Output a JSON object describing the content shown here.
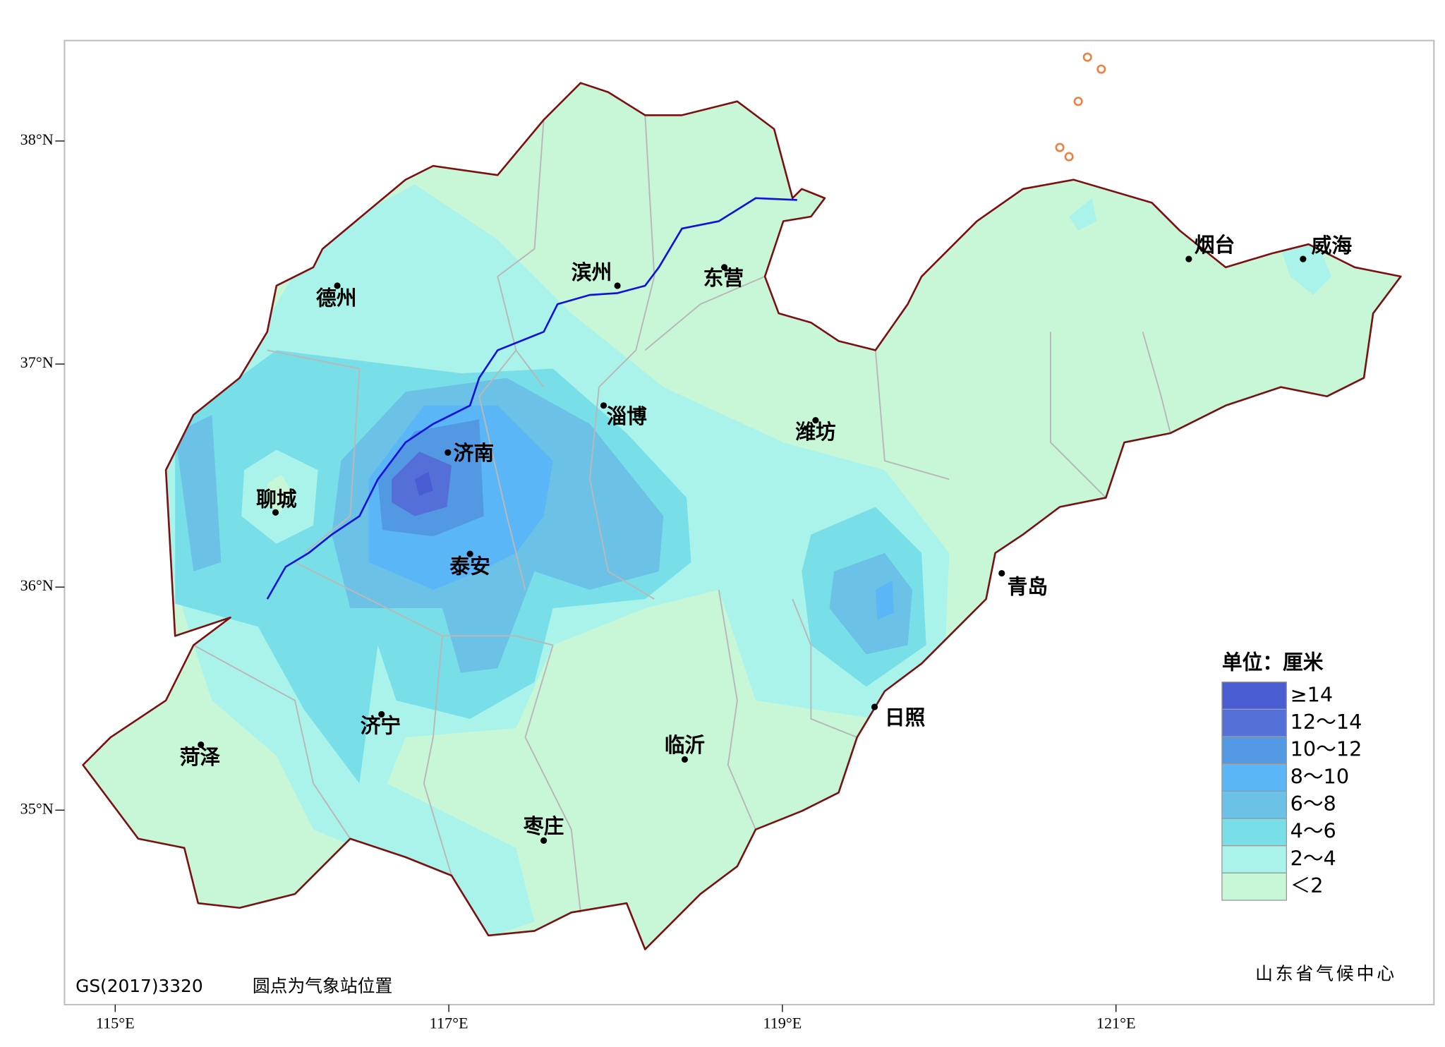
{
  "axes": {
    "latitude": [
      "38°N",
      "37°N",
      "36°N",
      "35°N"
    ],
    "longitude": [
      "115°E",
      "117°E",
      "119°E",
      "121°E"
    ]
  },
  "cities": [
    "德州",
    "滨州",
    "东营",
    "烟台",
    "威海",
    "淄博",
    "潍坊",
    "济南",
    "聊城",
    "泰安",
    "青岛",
    "日照",
    "济宁",
    "临沂",
    "菏泽",
    "枣庄"
  ],
  "legend": {
    "title": "单位：厘米",
    "items": [
      {
        "label": "≥14",
        "color": "#4a5cd2"
      },
      {
        "label": "12～14",
        "color": "#5470d8"
      },
      {
        "label": "10～12",
        "color": "#5298e2"
      },
      {
        "label": "8～10",
        "color": "#5ab6f6"
      },
      {
        "label": "6～8",
        "color": "#6cc2e6"
      },
      {
        "label": "4～6",
        "color": "#78dfe8"
      },
      {
        "label": "2～4",
        "color": "#aaf3ea"
      },
      {
        "label": "＜2",
        "color": "#c8f7d8"
      }
    ]
  },
  "footer": {
    "code": "GS(2017)3320",
    "note": "圆点为气象站位置",
    "source": "山东省气候中心"
  }
}
